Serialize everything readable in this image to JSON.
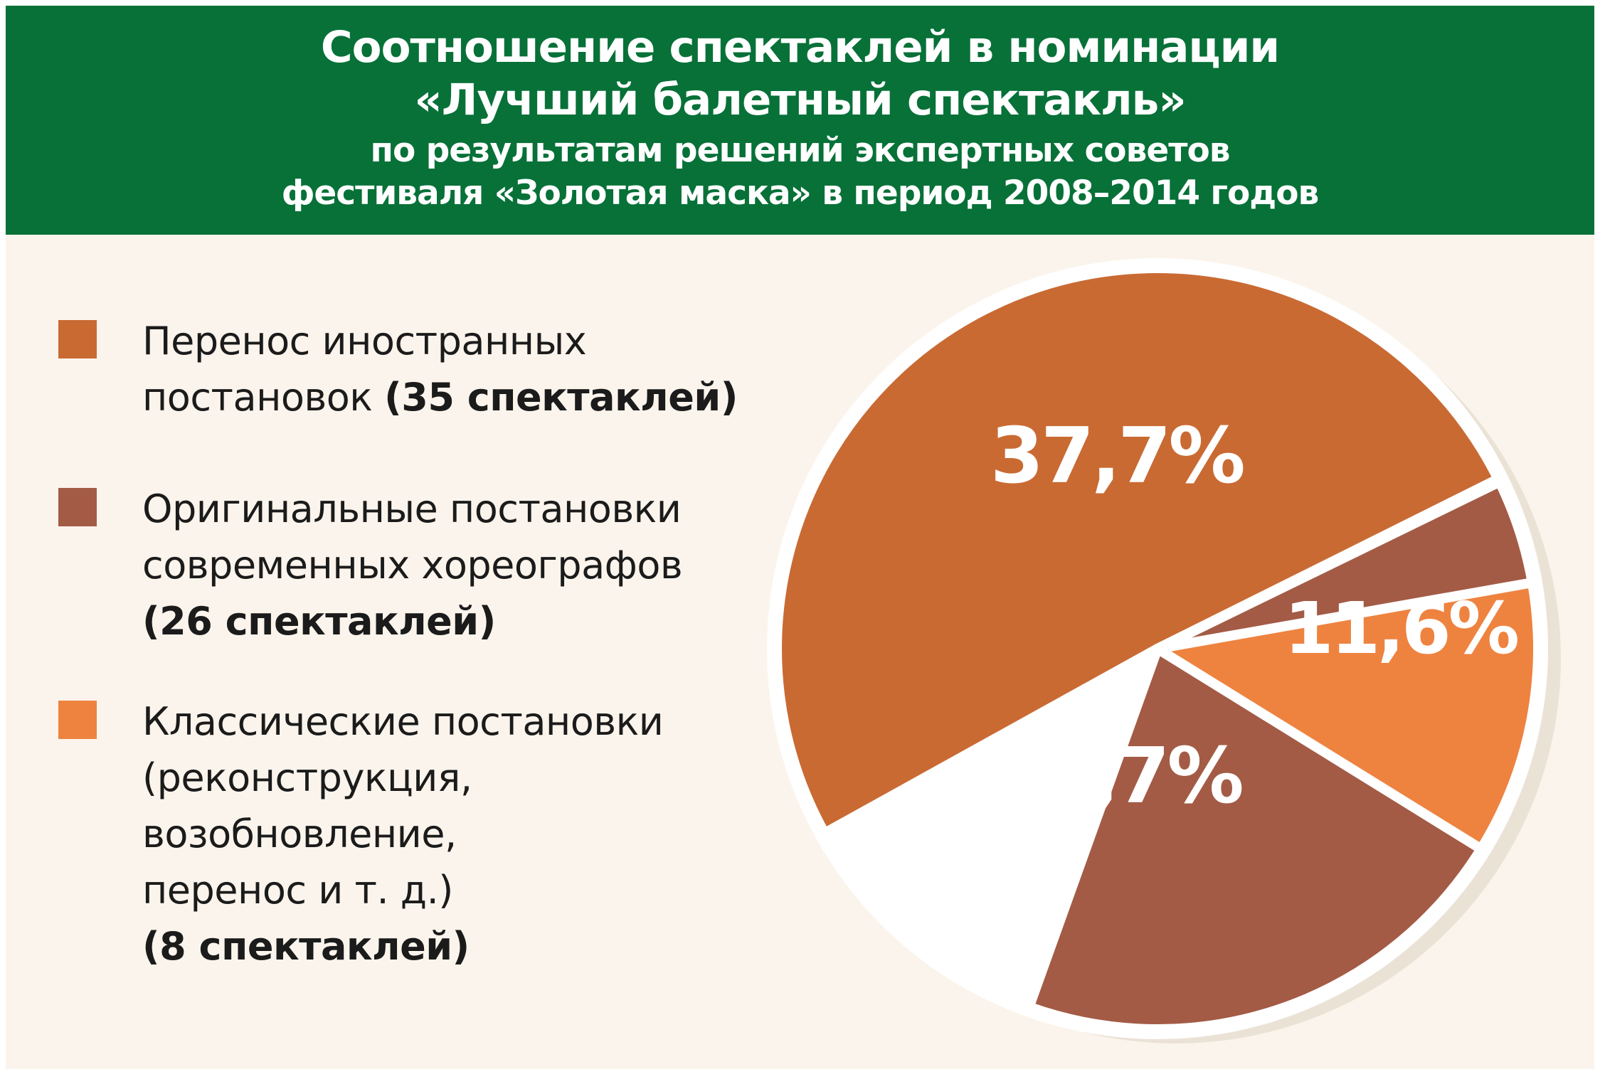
{
  "header": {
    "title_line1": "Соотношение спектаклей в номинации",
    "title_line2": "«Лучший балетный спектакль»",
    "subtitle_line1": "по результатам решений экспертных советов",
    "subtitle_line2": "фестиваля «Золотая маска» в период 2008–2014 годов"
  },
  "legend": [
    {
      "color": "#c96a33",
      "line1": "Перенос иностранных",
      "line2": "постановок",
      "count": "(35 спектаклей)"
    },
    {
      "color": "#a35b45",
      "line1": "Оригинальные постановки",
      "line2": "современных хореографов",
      "count": "(26 спектаклей)"
    },
    {
      "color": "#ee8340",
      "line1": "Классические постановки",
      "line2": "(реконструкция,",
      "line3": "возобновление,",
      "line4": "перенос и т. д.)",
      "count": "(8 спектаклей)"
    }
  ],
  "chart_data": {
    "type": "pie",
    "title": "Соотношение спектаклей в номинации «Лучший балетный спектакль»",
    "subtitle": "по результатам решений экспертных советов фестиваля «Золотая маска» в период 2008–2014 годов",
    "categories": [
      "Перенос иностранных постановок",
      "Оригинальные постановки современных хореографов",
      "Классические постановки (реконструкция, возобновление, перенос и т. д.)"
    ],
    "values": [
      50.7,
      37.7,
      11.6
    ],
    "counts": [
      35,
      26,
      8
    ],
    "labels": [
      "50,7%",
      "37,7%",
      "11,6%"
    ],
    "colors": [
      "#c96a33",
      "#a35b45",
      "#ee8340"
    ],
    "legend_position": "left"
  }
}
